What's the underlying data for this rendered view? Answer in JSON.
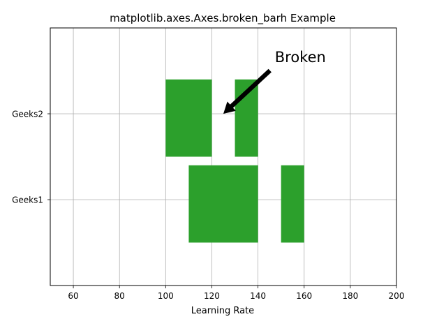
{
  "chart_data": {
    "type": "bar",
    "orientation": "horizontal",
    "variant": "broken_barh",
    "title": "matplotlib.axes.Axes.broken_barh Example",
    "xlabel": "Learning Rate",
    "ylabel": "",
    "xlim": [
      50,
      200
    ],
    "ylim": [
      5,
      35
    ],
    "x_ticks": [
      60,
      80,
      100,
      120,
      140,
      160,
      180,
      200
    ],
    "y_ticks": [
      15,
      25
    ],
    "y_tick_labels": [
      "Geeks1",
      "Geeks2"
    ],
    "grid": true,
    "bar_color": "#2ca02c",
    "grid_color": "#b0b0b0",
    "series": [
      {
        "category": "Geeks1",
        "y_start": 10,
        "y_height": 9,
        "segments": [
          {
            "start": 110,
            "width": 30
          },
          {
            "start": 150,
            "width": 10
          }
        ]
      },
      {
        "category": "Geeks2",
        "y_start": 20,
        "y_height": 9,
        "segments": [
          {
            "start": 100,
            "width": 20
          },
          {
            "start": 130,
            "width": 10
          }
        ]
      }
    ],
    "annotation": {
      "text": "Broken",
      "xy": [
        125,
        25
      ],
      "xytext": [
        147,
        31.5
      ],
      "arrow_color": "#000000"
    }
  }
}
